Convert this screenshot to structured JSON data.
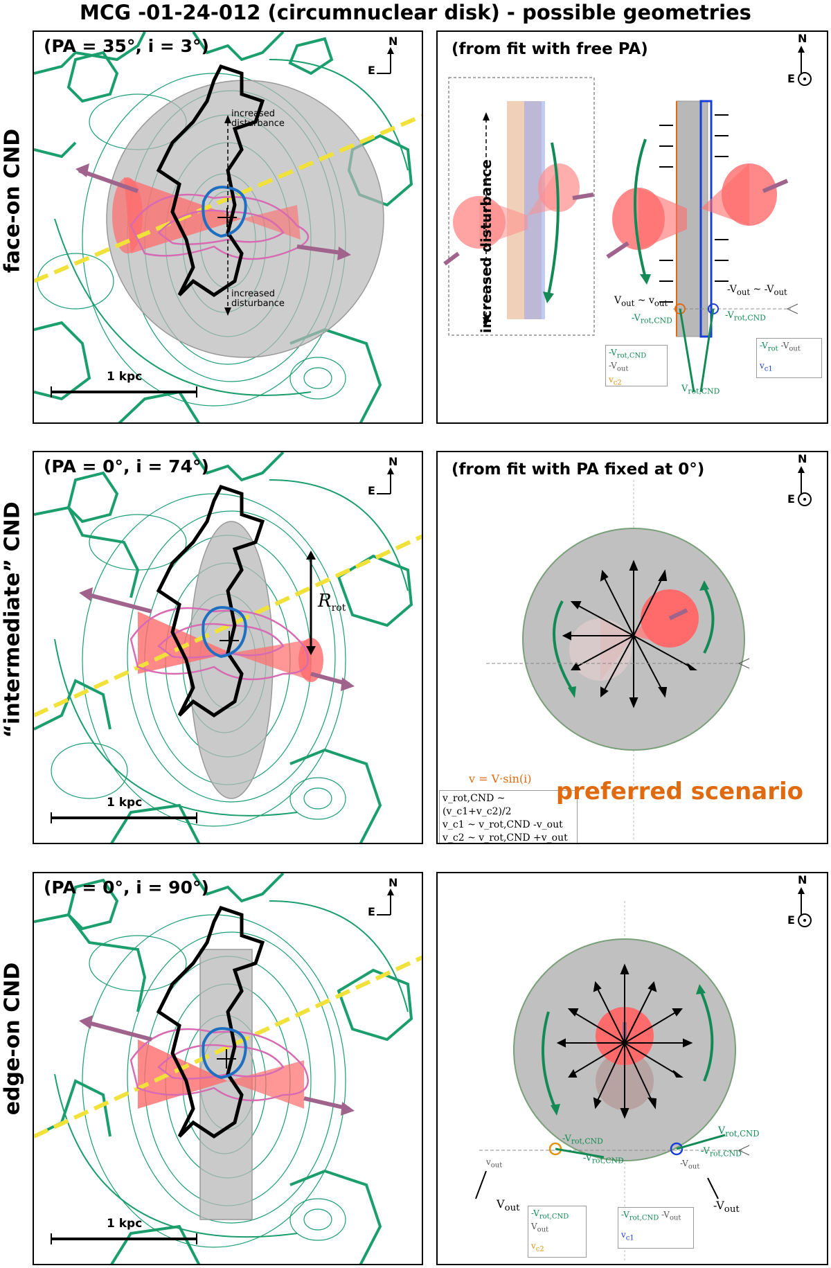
{
  "title": "MCG -01-24-012 (circumnuclear disk) - possible geometries",
  "rows": [
    {
      "label": "face-on CND",
      "param": "(PA = 35°, i = 3°)",
      "right_title": "(from fit with free PA)"
    },
    {
      "label": "“intermediate” CND",
      "param": "(PA = 0°, i = 74°)",
      "right_title": "(from fit with PA fixed at 0°)"
    },
    {
      "label": "edge-on CND",
      "param": "(PA = 0°, i = 90°)",
      "right_title": ""
    }
  ],
  "compass": {
    "north": "N",
    "east": "E"
  },
  "scalebar": "1 kpc",
  "annotations": {
    "increased_disturbance": "increased disturbance",
    "r_rot": "R",
    "r_rot_sub": "rot",
    "v_out_eq": "Vₒᵤₜ ~ vₒᵤₜ",
    "v_out": "V",
    "v_out_small": "v",
    "out": "out",
    "neg_v_rot": "-V",
    "v_rot_cnd_sub": "rot,CND",
    "v_rot": "V",
    "v_c1": "v",
    "c1": "c1",
    "c2": "c2",
    "minus_v_out": "-V",
    "minus_v_rot": "-V",
    "rot": "rot"
  },
  "middle": {
    "formula": "v = V·sin(i)",
    "legend": [
      "v_rot,CND ~ (v_c1+v_c2)/2",
      "v_c1 ~ v_rot,CND -v_out",
      "v_c2 ~ v_rot,CND +v_out"
    ],
    "preferred": "preferred scenario"
  },
  "colors": {
    "contour": "#1a9e6e",
    "cone": "#ff6b6b",
    "disk": "#b8b8b8",
    "arrow_purple": "#a0648c",
    "yellow": "#f0e23a",
    "blue": "#1f6fc0",
    "pink": "#d66bb3",
    "orange_text": "#e06a10"
  }
}
